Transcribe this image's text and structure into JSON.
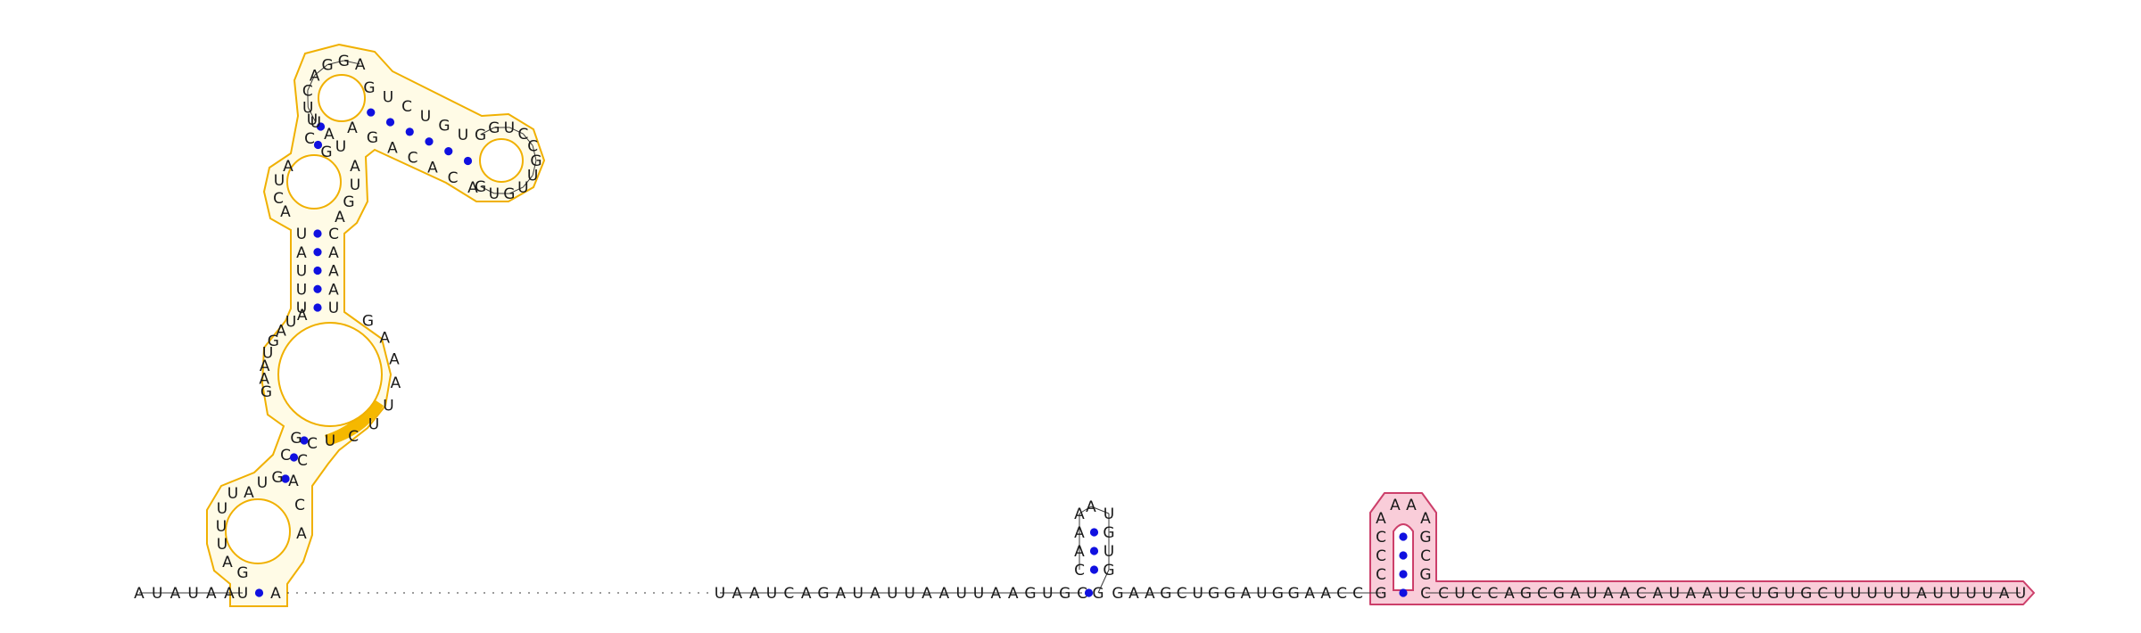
{
  "diagram": {
    "colors": {
      "nucleotide": "#1a1a1a",
      "backbone": "#3a3a3a",
      "base_pair": "#1010e0",
      "orange_outline": "#f0b000",
      "orange_fill": "#fffbe6",
      "orange_highlight": "#f5b800",
      "pink_outline": "#cc3f6a",
      "pink_fill": "#f9cdd9"
    },
    "segments": {
      "five_prime_tail": "AUAUAA",
      "middle_linker": "UAAUCAGAUAUUAAUUAAGUGC",
      "helix_b_loop": "GAACAAUGUG",
      "helix_b_linker": "GAAGCUGGAUGGAACC",
      "helix_c_stem_5p": "GCCCA",
      "helix_c_loop": "AA",
      "helix_c_stem_3p": "AGCGC",
      "three_prime_tail": "CUCCAGCGAUAACAUAAUCUGUGCUUUUUAUUUUAU"
    },
    "domain_a": {
      "closing_pair": [
        "U",
        "A"
      ],
      "bottom_loop": "GAUUUUAU",
      "stem1_left": "GCG",
      "stem1_right": "CCA",
      "stem1_right_extra": "CA",
      "internal_loop_left": "AUAGUAAG",
      "internal_loop_right": "UCUUAAAG",
      "stem2_left": "UUUAU",
      "stem2_right": "UAAAC",
      "junction_left": "ACUA",
      "stem3_left": "CU",
      "stem3_right": "GA",
      "hairpin_top": "UUCAGGA",
      "branch_5p": "GUCUGU",
      "branch_loop": "GGUCCGUUGUG",
      "branch_3p": "ACACAGA",
      "junction_right": "UAUGA"
    }
  }
}
